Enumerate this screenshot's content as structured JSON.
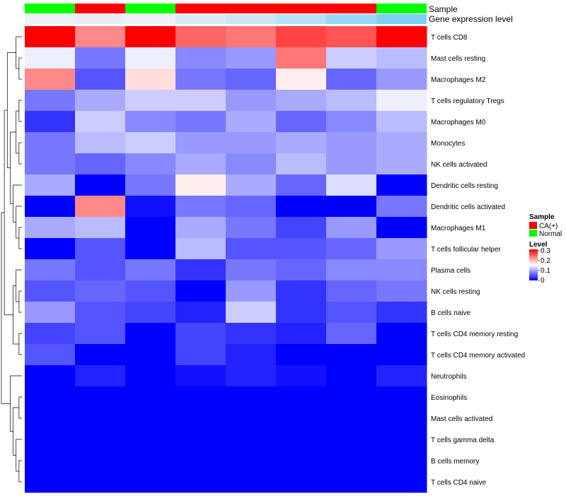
{
  "chart_data": {
    "type": "heatmap",
    "annotation_tracks": [
      {
        "name": "Sample",
        "values": [
          "Normal",
          "CA(+)",
          "Normal",
          "CA(+)",
          "CA(+)",
          "CA(+)",
          "CA(+)",
          "Normal"
        ]
      },
      {
        "name": "Gene expression level",
        "values": [
          0.0,
          0.05,
          0.0,
          0.15,
          0.25,
          0.4,
          0.6,
          0.8
        ]
      }
    ],
    "rows": [
      "T cells CD8",
      "Mast cells resting",
      "Macrophages M2",
      "T cells regulatory  Tregs",
      "Macrophages M0",
      "Monocytes",
      "NK cells activated",
      "Dendritic cells resting",
      "Dendritic cells activated",
      "Macrophages M1",
      "T cells follicular helper",
      "Plasma cells",
      "NK cells resting",
      "B cells naive",
      "T cells CD4 memory resting",
      "T cells CD4 memory activated",
      "Neutrophils",
      "Eosinophils",
      "Mast cells activated",
      "T cells gamma delta",
      "B cells memory",
      "T cells CD4 naive"
    ],
    "values": [
      [
        0.3,
        0.22,
        0.3,
        0.24,
        0.23,
        0.26,
        0.25,
        0.3
      ],
      [
        0.14,
        0.07,
        0.14,
        0.08,
        0.09,
        0.23,
        0.12,
        0.11
      ],
      [
        0.22,
        0.05,
        0.17,
        0.07,
        0.06,
        0.16,
        0.06,
        0.09
      ],
      [
        0.07,
        0.1,
        0.12,
        0.12,
        0.09,
        0.1,
        0.11,
        0.14
      ],
      [
        0.03,
        0.12,
        0.08,
        0.07,
        0.1,
        0.06,
        0.08,
        0.11
      ],
      [
        0.07,
        0.11,
        0.12,
        0.09,
        0.09,
        0.1,
        0.09,
        0.1
      ],
      [
        0.07,
        0.06,
        0.08,
        0.1,
        0.08,
        0.11,
        0.09,
        0.1
      ],
      [
        0.1,
        0.0,
        0.07,
        0.16,
        0.1,
        0.06,
        0.13,
        0.0
      ],
      [
        0.0,
        0.22,
        0.01,
        0.07,
        0.06,
        0.0,
        0.0,
        0.07
      ],
      [
        0.1,
        0.11,
        0.0,
        0.1,
        0.07,
        0.04,
        0.09,
        0.0
      ],
      [
        0.0,
        0.05,
        0.0,
        0.11,
        0.05,
        0.05,
        0.06,
        0.09
      ],
      [
        0.07,
        0.05,
        0.07,
        0.03,
        0.07,
        0.06,
        0.08,
        0.08
      ],
      [
        0.05,
        0.06,
        0.05,
        0.0,
        0.09,
        0.03,
        0.06,
        0.07
      ],
      [
        0.09,
        0.05,
        0.04,
        0.02,
        0.12,
        0.03,
        0.05,
        0.03
      ],
      [
        0.04,
        0.05,
        0.0,
        0.04,
        0.03,
        0.02,
        0.06,
        0.0
      ],
      [
        0.05,
        0.0,
        0.0,
        0.04,
        0.02,
        0.0,
        0.0,
        0.0
      ],
      [
        0.0,
        0.02,
        0.0,
        0.01,
        0.02,
        0.01,
        0.0,
        0.02
      ],
      [
        0.0,
        0.0,
        0.0,
        0.0,
        0.0,
        0.0,
        0.0,
        0.0
      ],
      [
        0.0,
        0.0,
        0.0,
        0.0,
        0.0,
        0.0,
        0.0,
        0.0
      ],
      [
        0.0,
        0.0,
        0.0,
        0.0,
        0.0,
        0.0,
        0.0,
        0.0
      ],
      [
        0.0,
        0.0,
        0.0,
        0.0,
        0.0,
        0.0,
        0.0,
        0.0
      ],
      [
        0.0,
        0.0,
        0.0,
        0.0,
        0.0,
        0.0,
        0.0,
        0.0
      ]
    ],
    "color_range": [
      0,
      0.3
    ],
    "colors": {
      "low": "#0000ff",
      "mid": "#ffffff",
      "high": "#ff0000"
    },
    "dendrogram": "rows clustered (left)"
  },
  "legend": {
    "sample_title": "Sample",
    "sample_items": [
      {
        "label": "CA(+)",
        "color": "#ff0000"
      },
      {
        "label": "Normal",
        "color": "#00ff00"
      }
    ],
    "level_title": "Level",
    "level_ticks": [
      "0.3",
      "0.2",
      "0.1",
      "0"
    ]
  }
}
